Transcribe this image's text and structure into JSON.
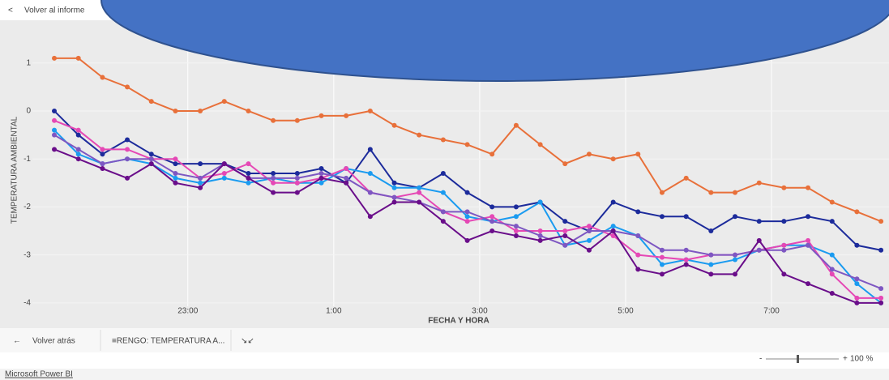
{
  "ui": {
    "back_link": "Volver al informe",
    "back_button": "Volver atrás",
    "tab_label": "≡RENGO: TEMPERATURA A...",
    "zoom_minus": "-",
    "zoom_plus": "+",
    "zoom_level": "100 %",
    "footer_brand": "Microsoft Power BI"
  },
  "chart_data": {
    "type": "line",
    "x_label": "FECHA Y HORA",
    "y_label": "TEMPERATURA AMBIENTAL",
    "x": [
      21.17,
      21.5,
      21.83,
      22.17,
      22.5,
      22.83,
      23.17,
      23.5,
      23.83,
      24.17,
      24.5,
      24.83,
      25.17,
      25.5,
      25.83,
      26.17,
      26.5,
      26.83,
      27.17,
      27.5,
      27.83,
      28.17,
      28.5,
      28.83,
      29.17,
      29.5,
      29.83,
      30.17,
      30.5,
      30.83,
      31.17,
      31.5,
      31.83,
      32.17,
      32.5
    ],
    "series": [
      {
        "color": "#e8703a",
        "values": [
          1.1,
          1.1,
          0.7,
          0.5,
          0.2,
          0,
          0,
          0.2,
          0,
          -0.2,
          -0.2,
          -0.1,
          -0.1,
          0,
          -0.3,
          -0.5,
          -0.6,
          -0.7,
          -0.9,
          -0.3,
          -0.7,
          -1.1,
          -0.9,
          -1.0,
          -0.9,
          -1.7,
          -1.4,
          -1.7,
          -1.7,
          -1.5,
          -1.6,
          -1.6,
          -1.9,
          -2.1,
          -2.3
        ]
      },
      {
        "color": "#1c2b9b",
        "values": [
          0,
          -0.5,
          -0.9,
          -0.6,
          -0.9,
          -1.1,
          -1.1,
          -1.1,
          -1.3,
          -1.3,
          -1.3,
          -1.2,
          -1.5,
          -0.8,
          -1.5,
          -1.6,
          -1.3,
          -1.7,
          -2.0,
          -2.0,
          -1.9,
          -2.3,
          -2.5,
          -1.9,
          -2.1,
          -2.2,
          -2.2,
          -2.5,
          -2.2,
          -2.3,
          -2.3,
          -2.2,
          -2.3,
          -2.8,
          -2.9
        ]
      },
      {
        "color": "#1a9bf0",
        "values": [
          -0.4,
          -0.9,
          -1.1,
          -1.0,
          -1.1,
          -1.4,
          -1.5,
          -1.4,
          -1.5,
          -1.4,
          -1.5,
          -1.5,
          -1.2,
          -1.3,
          -1.6,
          -1.6,
          -1.7,
          -2.2,
          -2.3,
          -2.2,
          -1.9,
          -2.8,
          -2.7,
          -2.4,
          -2.6,
          -3.2,
          -3.1,
          -3.2,
          -3.1,
          -2.9,
          -2.8,
          -2.8,
          -3.0,
          -3.6,
          -4.0
        ]
      },
      {
        "color": "#e548b5",
        "values": [
          -0.2,
          -0.4,
          -0.8,
          -0.8,
          -1.0,
          -1.0,
          -1.4,
          -1.3,
          -1.1,
          -1.5,
          -1.5,
          -1.4,
          -1.2,
          -1.7,
          -1.8,
          -1.7,
          -2.1,
          -2.3,
          -2.2,
          -2.5,
          -2.5,
          -2.5,
          -2.4,
          -2.6,
          -3.0,
          -3.05,
          -3.1,
          -3.0,
          -3.0,
          -2.9,
          -2.8,
          -2.7,
          -3.4,
          -3.9,
          -3.9
        ]
      },
      {
        "color": "#7e57c2",
        "values": [
          -0.5,
          -0.8,
          -1.1,
          -1.0,
          -1.0,
          -1.3,
          -1.4,
          -1.1,
          -1.4,
          -1.4,
          -1.4,
          -1.3,
          -1.4,
          -1.7,
          -1.8,
          -1.9,
          -2.1,
          -2.1,
          -2.3,
          -2.4,
          -2.6,
          -2.8,
          -2.5,
          -2.5,
          -2.6,
          -2.9,
          -2.9,
          -3.0,
          -3.0,
          -2.9,
          -2.9,
          -2.8,
          -3.3,
          -3.5,
          -3.7
        ]
      },
      {
        "color": "#6a0e8a",
        "values": [
          -0.8,
          -1.0,
          -1.2,
          -1.4,
          -1.1,
          -1.5,
          -1.6,
          -1.1,
          -1.4,
          -1.7,
          -1.7,
          -1.4,
          -1.5,
          -2.2,
          -1.9,
          -1.9,
          -2.3,
          -2.7,
          -2.5,
          -2.6,
          -2.7,
          -2.6,
          -2.9,
          -2.5,
          -3.3,
          -3.4,
          -3.2,
          -3.4,
          -3.4,
          -2.7,
          -3.4,
          -3.6,
          -3.8,
          -4.0,
          -4.0
        ]
      }
    ],
    "xlim": [
      20.87,
      32.61
    ],
    "xticks": [
      {
        "value": 23,
        "label": "23:00"
      },
      {
        "value": 25,
        "label": "1:00"
      },
      {
        "value": 27,
        "label": "3:00"
      },
      {
        "value": 29,
        "label": "5:00"
      },
      {
        "value": 31,
        "label": "7:00"
      }
    ],
    "ylim": [
      -4.07,
      1.84
    ],
    "yticks": [
      1,
      0,
      -1,
      -2,
      -3,
      -4
    ],
    "grid": true
  }
}
